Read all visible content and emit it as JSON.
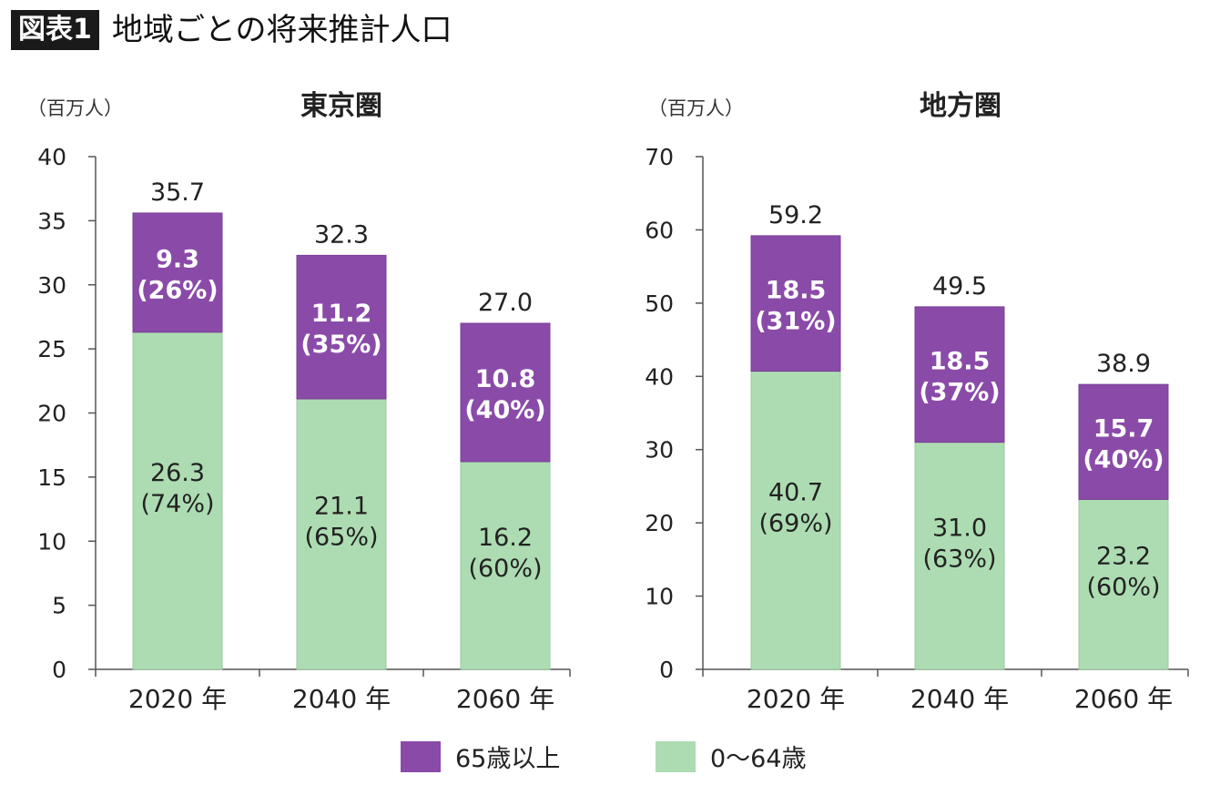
{
  "header": {
    "badge": "図表1",
    "title": "地域ごとの将来推計人口"
  },
  "colors": {
    "senior": "#8a4ba8",
    "working": "#addcb2",
    "axis": "#555555"
  },
  "chart_data": [
    {
      "type": "bar",
      "stacked": true,
      "title": "東京圏",
      "unit_label": "（百万人）",
      "categories": [
        "2020 年",
        "2040 年",
        "2060 年"
      ],
      "ylim": [
        0,
        40
      ],
      "yticks": [
        0,
        5,
        10,
        15,
        20,
        25,
        30,
        35,
        40
      ],
      "totals": [
        "35.7",
        "32.3",
        "27.0"
      ],
      "series": [
        {
          "name": "0〜64歳",
          "values": [
            26.3,
            21.1,
            16.2
          ],
          "value_labels": [
            "26.3",
            "21.1",
            "16.2"
          ],
          "share_labels": [
            "(74%)",
            "(65%)",
            "(60%)"
          ]
        },
        {
          "name": "65歳以上",
          "values": [
            9.3,
            11.2,
            10.8
          ],
          "value_labels": [
            "9.3",
            "11.2",
            "10.8"
          ],
          "share_labels": [
            "(26%)",
            "(35%)",
            "(40%)"
          ]
        }
      ]
    },
    {
      "type": "bar",
      "stacked": true,
      "title": "地方圏",
      "unit_label": "（百万人）",
      "categories": [
        "2020 年",
        "2040 年",
        "2060 年"
      ],
      "ylim": [
        0,
        70
      ],
      "yticks": [
        0,
        10,
        20,
        30,
        40,
        50,
        60,
        70
      ],
      "totals": [
        "59.2",
        "49.5",
        "38.9"
      ],
      "series": [
        {
          "name": "0〜64歳",
          "values": [
            40.7,
            31.0,
            23.2
          ],
          "value_labels": [
            "40.7",
            "31.0",
            "23.2"
          ],
          "share_labels": [
            "(69%)",
            "(63%)",
            "(60%)"
          ]
        },
        {
          "name": "65歳以上",
          "values": [
            18.5,
            18.5,
            15.7
          ],
          "value_labels": [
            "18.5",
            "18.5",
            "15.7"
          ],
          "share_labels": [
            "(31%)",
            "(37%)",
            "(40%)"
          ]
        }
      ]
    }
  ],
  "legend": [
    {
      "label": "65歳以上",
      "color": "#8a4ba8"
    },
    {
      "label": "0〜64歳",
      "color": "#addcb2"
    }
  ]
}
